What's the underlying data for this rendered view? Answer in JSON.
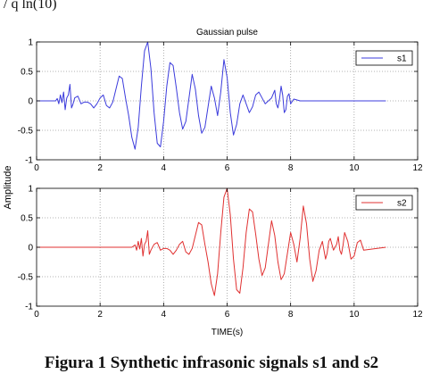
{
  "page": {
    "top_fragment": "/ q ln(10)",
    "caption": "Figura 1 Synthetic infrasonic signals s1 and s2"
  },
  "chart_data": [
    {
      "type": "line",
      "title": "Gaussian pulse",
      "ylabel": "Amplitude",
      "xlabel": "",
      "xlim": [
        0,
        12
      ],
      "ylim": [
        -1,
        1
      ],
      "xticks": [
        0,
        2,
        4,
        6,
        8,
        10,
        12
      ],
      "yticks": [
        -1,
        -0.5,
        0,
        0.5,
        1
      ],
      "grid": true,
      "legend_position": "top-right",
      "series": [
        {
          "name": "s1",
          "color": "#3b3bdc",
          "x": [
            0,
            0.6,
            0.65,
            0.7,
            0.75,
            0.8,
            0.85,
            0.9,
            0.95,
            1.0,
            1.05,
            1.1,
            1.15,
            1.2,
            1.3,
            1.4,
            1.5,
            1.6,
            1.7,
            1.8,
            1.9,
            2.0,
            2.1,
            2.2,
            2.3,
            2.4,
            2.5,
            2.6,
            2.7,
            2.8,
            2.9,
            3.0,
            3.1,
            3.2,
            3.3,
            3.4,
            3.5,
            3.6,
            3.7,
            3.8,
            3.9,
            4.0,
            4.1,
            4.2,
            4.3,
            4.4,
            4.5,
            4.6,
            4.7,
            4.8,
            4.9,
            5.0,
            5.1,
            5.2,
            5.3,
            5.4,
            5.5,
            5.6,
            5.7,
            5.8,
            5.9,
            6.0,
            6.1,
            6.2,
            6.3,
            6.4,
            6.5,
            6.6,
            6.7,
            6.8,
            6.9,
            7.0,
            7.1,
            7.2,
            7.3,
            7.4,
            7.5,
            7.55,
            7.6,
            7.65,
            7.7,
            7.75,
            7.8,
            7.85,
            7.9,
            7.95,
            8.0,
            8.1,
            8.3,
            9.0,
            11.0
          ],
          "y": [
            0,
            0,
            0.04,
            -0.05,
            0.1,
            -0.03,
            0.15,
            -0.15,
            0.05,
            0.1,
            0.28,
            -0.12,
            -0.05,
            0.05,
            0.08,
            -0.05,
            -0.02,
            -0.02,
            -0.05,
            -0.12,
            -0.05,
            0.05,
            0.1,
            -0.08,
            -0.12,
            -0.02,
            0.2,
            0.42,
            0.38,
            0.05,
            -0.25,
            -0.62,
            -0.82,
            -0.45,
            0.25,
            0.85,
            1.0,
            0.55,
            -0.2,
            -0.72,
            -0.78,
            -0.35,
            0.25,
            0.65,
            0.6,
            0.22,
            -0.2,
            -0.48,
            -0.35,
            0.05,
            0.45,
            0.2,
            -0.25,
            -0.55,
            -0.45,
            -0.1,
            0.25,
            0.05,
            -0.25,
            0.15,
            0.7,
            0.4,
            -0.2,
            -0.58,
            -0.4,
            -0.05,
            0.1,
            -0.05,
            -0.2,
            -0.1,
            0.1,
            0.15,
            0.05,
            -0.05,
            0.0,
            0.05,
            0.18,
            -0.05,
            -0.12,
            0.03,
            0.25,
            0.1,
            -0.2,
            -0.15,
            0.08,
            0.12,
            -0.05,
            0.03,
            0,
            0,
            0
          ]
        }
      ]
    },
    {
      "type": "line",
      "title": "",
      "ylabel": "Amplitude",
      "xlabel": "TIME(s)",
      "xlim": [
        0,
        12
      ],
      "ylim": [
        -1,
        1
      ],
      "xticks": [
        0,
        2,
        4,
        6,
        8,
        10,
        12
      ],
      "yticks": [
        -1,
        -0.5,
        0,
        0.5,
        1
      ],
      "grid": true,
      "legend_position": "top-right",
      "series": [
        {
          "name": "s2",
          "color": "#e03030",
          "x": [
            0,
            3.0,
            3.1,
            3.15,
            3.2,
            3.25,
            3.3,
            3.35,
            3.4,
            3.45,
            3.5,
            3.55,
            3.6,
            3.7,
            3.8,
            3.9,
            4.0,
            4.1,
            4.2,
            4.3,
            4.4,
            4.5,
            4.6,
            4.7,
            4.8,
            4.9,
            5.0,
            5.1,
            5.2,
            5.3,
            5.4,
            5.5,
            5.6,
            5.7,
            5.8,
            5.9,
            6.0,
            6.1,
            6.2,
            6.3,
            6.4,
            6.5,
            6.6,
            6.7,
            6.8,
            6.9,
            7.0,
            7.1,
            7.2,
            7.3,
            7.4,
            7.5,
            7.6,
            7.7,
            7.8,
            7.9,
            8.0,
            8.1,
            8.2,
            8.3,
            8.4,
            8.5,
            8.6,
            8.7,
            8.8,
            8.9,
            9.0,
            9.05,
            9.1,
            9.15,
            9.2,
            9.25,
            9.3,
            9.35,
            9.4,
            9.45,
            9.5,
            9.55,
            9.6,
            9.65,
            9.7,
            9.8,
            9.9,
            10.0,
            10.1,
            10.2,
            10.3,
            11.0
          ],
          "y": [
            0,
            0,
            0.04,
            -0.05,
            0.1,
            -0.03,
            0.15,
            -0.15,
            0.05,
            0.1,
            0.28,
            -0.12,
            -0.05,
            0.05,
            0.08,
            -0.05,
            -0.02,
            -0.02,
            -0.05,
            -0.12,
            -0.05,
            0.05,
            0.1,
            -0.08,
            -0.12,
            -0.02,
            0.2,
            0.42,
            0.38,
            0.05,
            -0.25,
            -0.62,
            -0.82,
            -0.45,
            0.25,
            0.85,
            1.0,
            0.55,
            -0.2,
            -0.72,
            -0.78,
            -0.35,
            0.25,
            0.65,
            0.6,
            0.22,
            -0.2,
            -0.48,
            -0.35,
            0.05,
            0.45,
            0.2,
            -0.25,
            -0.55,
            -0.45,
            -0.1,
            0.25,
            0.05,
            -0.25,
            0.15,
            0.7,
            0.4,
            -0.2,
            -0.58,
            -0.4,
            -0.05,
            0.1,
            -0.05,
            -0.2,
            -0.1,
            0.1,
            0.15,
            0.05,
            -0.05,
            0.0,
            0.05,
            0.18,
            -0.05,
            -0.12,
            0.03,
            0.25,
            0.1,
            -0.2,
            -0.15,
            0.08,
            0.12,
            -0.05,
            0
          ]
        }
      ]
    }
  ]
}
